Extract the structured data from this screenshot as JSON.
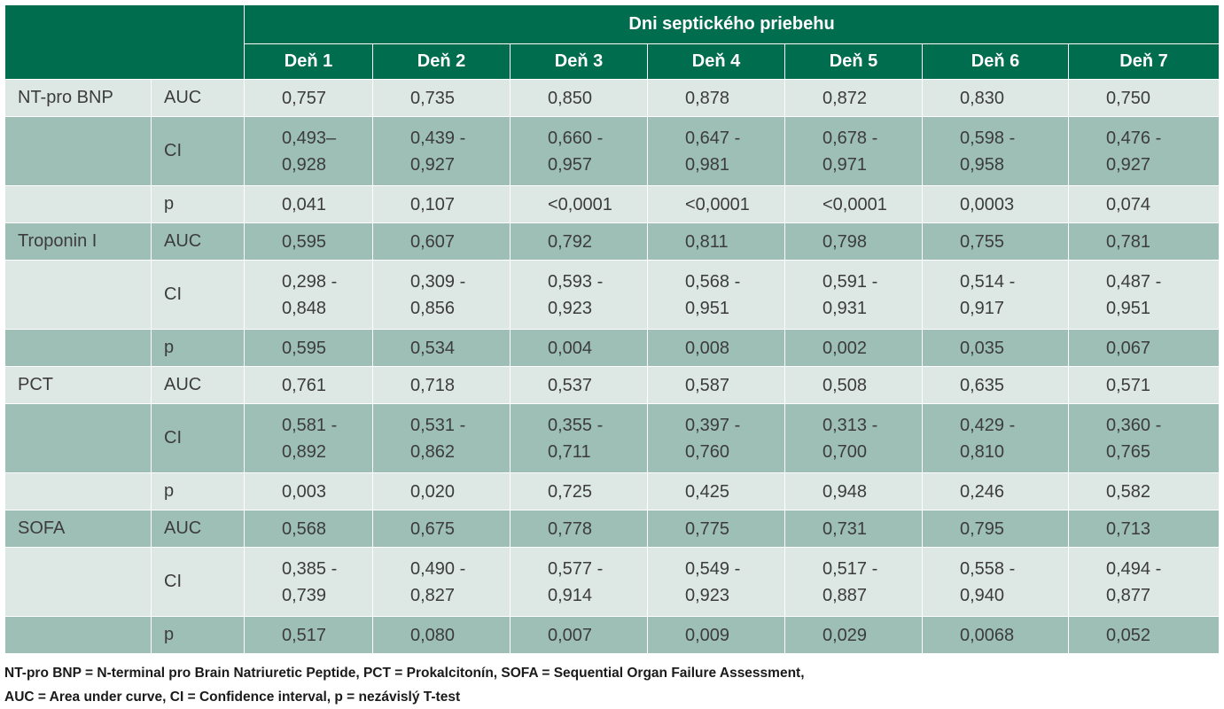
{
  "header": {
    "group_title": "Dni septického priebehu",
    "days": [
      "Deň 1",
      "Deň 2",
      "Deň 3",
      "Deň 4",
      "Deň 5",
      "Deň 6",
      "Deň 7"
    ]
  },
  "rows": [
    {
      "marker": "NT-pro BNP",
      "stat": "AUC",
      "values": [
        [
          "0,757"
        ],
        [
          "0,735"
        ],
        [
          "0,850"
        ],
        [
          "0,878"
        ],
        [
          "0,872"
        ],
        [
          "0,830"
        ],
        [
          "0,750"
        ]
      ]
    },
    {
      "marker": "",
      "stat": "CI",
      "values": [
        [
          "0,493–",
          "0,928"
        ],
        [
          "0,439 -",
          "0,927"
        ],
        [
          "0,660 -",
          "0,957"
        ],
        [
          "0,647 -",
          "0,981"
        ],
        [
          "0,678 -",
          "0,971"
        ],
        [
          "0,598 -",
          "0,958"
        ],
        [
          "0,476 -",
          "0,927"
        ]
      ]
    },
    {
      "marker": "",
      "stat": "p",
      "values": [
        [
          "0,041"
        ],
        [
          "0,107"
        ],
        [
          "<0,0001"
        ],
        [
          "<0,0001"
        ],
        [
          "<0,0001"
        ],
        [
          "0,0003"
        ],
        [
          "0,074"
        ]
      ]
    },
    {
      "marker": "Troponin I",
      "stat": "AUC",
      "values": [
        [
          "0,595"
        ],
        [
          "0,607"
        ],
        [
          "0,792"
        ],
        [
          "0,811"
        ],
        [
          "0,798"
        ],
        [
          "0,755"
        ],
        [
          "0,781"
        ]
      ]
    },
    {
      "marker": "",
      "stat": "CI",
      "values": [
        [
          "0,298 -",
          "0,848"
        ],
        [
          "0,309 -",
          "0,856"
        ],
        [
          "0,593 -",
          "0,923"
        ],
        [
          "0,568 -",
          "0,951"
        ],
        [
          "0,591 -",
          "0,931"
        ],
        [
          "0,514 -",
          "0,917"
        ],
        [
          "0,487 -",
          "0,951"
        ]
      ]
    },
    {
      "marker": "",
      "stat": "p",
      "values": [
        [
          "0,595"
        ],
        [
          "0,534"
        ],
        [
          "0,004"
        ],
        [
          "0,008"
        ],
        [
          "0,002"
        ],
        [
          "0,035"
        ],
        [
          "0,067"
        ]
      ]
    },
    {
      "marker": "PCT",
      "stat": "AUC",
      "values": [
        [
          "0,761"
        ],
        [
          "0,718"
        ],
        [
          "0,537"
        ],
        [
          "0,587"
        ],
        [
          "0,508"
        ],
        [
          "0,635"
        ],
        [
          "0,571"
        ]
      ]
    },
    {
      "marker": "",
      "stat": "CI",
      "values": [
        [
          "0,581 -",
          "0,892"
        ],
        [
          "0,531 -",
          "0,862"
        ],
        [
          "0,355 -",
          "0,711"
        ],
        [
          "0,397 -",
          "0,760"
        ],
        [
          "0,313 -",
          "0,700"
        ],
        [
          "0,429 -",
          "0,810"
        ],
        [
          "0,360 -",
          "0,765"
        ]
      ]
    },
    {
      "marker": "",
      "stat": "p",
      "values": [
        [
          "0,003"
        ],
        [
          "0,020"
        ],
        [
          "0,725"
        ],
        [
          "0,425"
        ],
        [
          "0,948"
        ],
        [
          "0,246"
        ],
        [
          "0,582"
        ]
      ]
    },
    {
      "marker": "SOFA",
      "stat": "AUC",
      "values": [
        [
          "0,568"
        ],
        [
          "0,675"
        ],
        [
          "0,778"
        ],
        [
          "0,775"
        ],
        [
          "0,731"
        ],
        [
          "0,795"
        ],
        [
          "0,713"
        ]
      ]
    },
    {
      "marker": "",
      "stat": "CI",
      "values": [
        [
          "0,385 -",
          "0,739"
        ],
        [
          "0,490 -",
          "0,827"
        ],
        [
          "0,577 -",
          "0,914"
        ],
        [
          "0,549 -",
          "0,923"
        ],
        [
          "0,517 -",
          "0,887"
        ],
        [
          "0,558 -",
          "0,940"
        ],
        [
          "0,494 -",
          "0,877"
        ]
      ]
    },
    {
      "marker": "",
      "stat": "p",
      "values": [
        [
          "0,517"
        ],
        [
          "0,080"
        ],
        [
          "0,007"
        ],
        [
          "0,009"
        ],
        [
          "0,029"
        ],
        [
          "0,0068"
        ],
        [
          "0,052"
        ]
      ]
    }
  ],
  "footnote": [
    "NT-pro BNP = N-terminal pro Brain Natriuretic Peptide, PCT = Prokalcitonín, SOFA = Sequential Organ Failure Assessment,",
    "AUC = Area under curve, CI = Confidence interval, p = nezávislý T-test"
  ],
  "colors": {
    "header": "#006d4e",
    "row_light": "#dde8e4",
    "row_dark": "#9ebfb5",
    "text": "#3c3c3c"
  }
}
